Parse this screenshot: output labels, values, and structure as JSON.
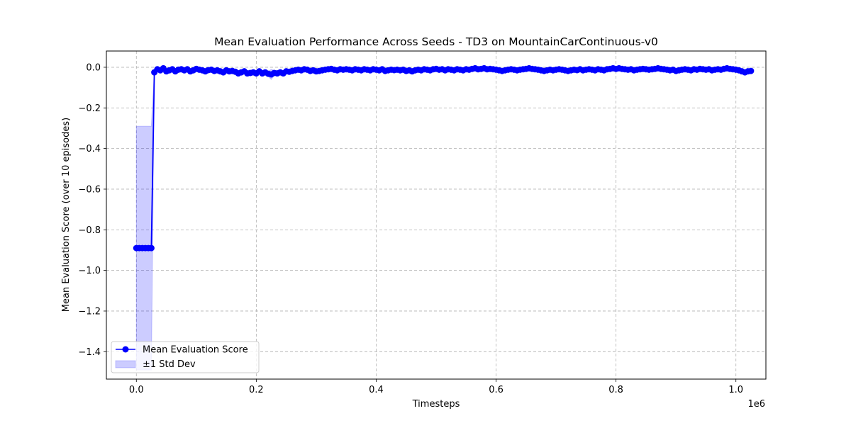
{
  "chart_data": {
    "type": "line",
    "title": "Mean Evaluation Performance Across Seeds - TD3 on MountainCarContinuous-v0",
    "xlabel": "Timesteps",
    "ylabel": "Mean Evaluation Score (over 10 episodes)",
    "x_offset_text": "1e6",
    "xlim": [
      -50000,
      1050000
    ],
    "ylim": [
      -1.535,
      0.08
    ],
    "x_ticks": [
      0,
      200000,
      400000,
      600000,
      800000,
      1000000
    ],
    "x_tick_labels": [
      "0.0",
      "0.2",
      "0.4",
      "0.6",
      "0.8",
      "1.0"
    ],
    "y_ticks": [
      0,
      -0.2,
      -0.4,
      -0.6,
      -0.8,
      -1.0,
      -1.2,
      -1.4
    ],
    "y_tick_labels": [
      "0.0",
      "−0.2",
      "−0.4",
      "−0.6",
      "−0.8",
      "−1.0",
      "−1.2",
      "−1.4"
    ],
    "grid": true,
    "legend_position": "lower-left",
    "colors": {
      "line": "#0000ff",
      "band": "#0000ff",
      "grid": "#b0b0b0",
      "axes": "#000000"
    },
    "series": [
      {
        "name": "Mean Evaluation Score",
        "band_name": "±1 Std Dev",
        "x_start": 0,
        "x_step": 5000,
        "values": [
          -0.89,
          -0.89,
          -0.89,
          -0.89,
          -0.89,
          -0.89,
          -0.025,
          -0.01,
          -0.015,
          -0.005,
          -0.02,
          -0.015,
          -0.01,
          -0.02,
          -0.012,
          -0.01,
          -0.015,
          -0.01,
          -0.02,
          -0.015,
          -0.008,
          -0.012,
          -0.015,
          -0.02,
          -0.014,
          -0.012,
          -0.018,
          -0.015,
          -0.02,
          -0.025,
          -0.015,
          -0.02,
          -0.018,
          -0.022,
          -0.03,
          -0.025,
          -0.02,
          -0.03,
          -0.028,
          -0.025,
          -0.03,
          -0.02,
          -0.03,
          -0.025,
          -0.032,
          -0.035,
          -0.028,
          -0.03,
          -0.025,
          -0.03,
          -0.02,
          -0.022,
          -0.018,
          -0.015,
          -0.012,
          -0.015,
          -0.01,
          -0.012,
          -0.018,
          -0.015,
          -0.02,
          -0.018,
          -0.015,
          -0.012,
          -0.01,
          -0.008,
          -0.012,
          -0.015,
          -0.01,
          -0.012,
          -0.01,
          -0.012,
          -0.015,
          -0.01,
          -0.012,
          -0.015,
          -0.01,
          -0.012,
          -0.015,
          -0.01,
          -0.012,
          -0.015,
          -0.01,
          -0.018,
          -0.015,
          -0.012,
          -0.014,
          -0.012,
          -0.015,
          -0.012,
          -0.018,
          -0.015,
          -0.02,
          -0.015,
          -0.012,
          -0.015,
          -0.01,
          -0.012,
          -0.015,
          -0.01,
          -0.008,
          -0.012,
          -0.01,
          -0.015,
          -0.01,
          -0.012,
          -0.015,
          -0.01,
          -0.012,
          -0.015,
          -0.01,
          -0.012,
          -0.008,
          -0.005,
          -0.01,
          -0.008,
          -0.005,
          -0.01,
          -0.008,
          -0.01,
          -0.012,
          -0.015,
          -0.018,
          -0.015,
          -0.012,
          -0.01,
          -0.012,
          -0.015,
          -0.012,
          -0.01,
          -0.008,
          -0.005,
          -0.008,
          -0.01,
          -0.012,
          -0.015,
          -0.018,
          -0.015,
          -0.012,
          -0.015,
          -0.012,
          -0.01,
          -0.012,
          -0.015,
          -0.018,
          -0.015,
          -0.012,
          -0.014,
          -0.01,
          -0.015,
          -0.012,
          -0.01,
          -0.012,
          -0.015,
          -0.01,
          -0.012,
          -0.015,
          -0.01,
          -0.008,
          -0.005,
          -0.008,
          -0.005,
          -0.008,
          -0.01,
          -0.012,
          -0.01,
          -0.015,
          -0.012,
          -0.01,
          -0.008,
          -0.01,
          -0.012,
          -0.01,
          -0.008,
          -0.005,
          -0.008,
          -0.01,
          -0.012,
          -0.015,
          -0.012,
          -0.018,
          -0.015,
          -0.012,
          -0.01,
          -0.012,
          -0.015,
          -0.01,
          -0.012,
          -0.008,
          -0.01,
          -0.012,
          -0.01,
          -0.015,
          -0.012,
          -0.01,
          -0.012,
          -0.008,
          -0.005,
          -0.008,
          -0.01,
          -0.012,
          -0.015,
          -0.02,
          -0.025,
          -0.02,
          -0.018
        ],
        "band_low": [
          -1.49,
          -1.49,
          -1.49,
          -1.49,
          -1.49,
          -1.49,
          -0.04,
          -0.02,
          -0.025,
          -0.015,
          -0.03,
          -0.025,
          -0.02,
          -0.03,
          -0.022,
          -0.02,
          -0.025,
          -0.02,
          -0.03,
          -0.025,
          -0.018,
          -0.022,
          -0.025,
          -0.03,
          -0.024,
          -0.022,
          -0.028,
          -0.025,
          -0.03,
          -0.035,
          -0.025,
          -0.03,
          -0.028,
          -0.032,
          -0.04,
          -0.035,
          -0.03,
          -0.04,
          -0.038,
          -0.035,
          -0.04,
          -0.03,
          -0.045,
          -0.035,
          -0.045,
          -0.06,
          -0.04,
          -0.042,
          -0.035,
          -0.04,
          -0.03,
          -0.032,
          -0.028,
          -0.025,
          -0.022,
          -0.025,
          -0.02,
          -0.022,
          -0.028,
          -0.025,
          -0.03,
          -0.028,
          -0.025,
          -0.022,
          -0.02,
          -0.018,
          -0.022,
          -0.025,
          -0.02,
          -0.022,
          -0.02,
          -0.022,
          -0.025,
          -0.02,
          -0.022,
          -0.025,
          -0.02,
          -0.022,
          -0.025,
          -0.02,
          -0.022,
          -0.025,
          -0.02,
          -0.028,
          -0.025,
          -0.022,
          -0.024,
          -0.022,
          -0.025,
          -0.022,
          -0.028,
          -0.025,
          -0.03,
          -0.025,
          -0.022,
          -0.025,
          -0.02,
          -0.022,
          -0.025,
          -0.02,
          -0.018,
          -0.022,
          -0.02,
          -0.025,
          -0.02,
          -0.022,
          -0.025,
          -0.02,
          -0.022,
          -0.025,
          -0.02,
          -0.022,
          -0.018,
          -0.015,
          -0.02,
          -0.018,
          -0.015,
          -0.02,
          -0.018,
          -0.02,
          -0.022,
          -0.025,
          -0.028,
          -0.025,
          -0.022,
          -0.02,
          -0.022,
          -0.025,
          -0.022,
          -0.02,
          -0.018,
          -0.015,
          -0.018,
          -0.02,
          -0.022,
          -0.025,
          -0.028,
          -0.025,
          -0.022,
          -0.025,
          -0.022,
          -0.02,
          -0.022,
          -0.025,
          -0.028,
          -0.025,
          -0.022,
          -0.024,
          -0.02,
          -0.025,
          -0.022,
          -0.02,
          -0.022,
          -0.025,
          -0.02,
          -0.022,
          -0.025,
          -0.02,
          -0.018,
          -0.015,
          -0.018,
          -0.015,
          -0.018,
          -0.02,
          -0.022,
          -0.02,
          -0.025,
          -0.022,
          -0.02,
          -0.018,
          -0.02,
          -0.022,
          -0.02,
          -0.018,
          -0.015,
          -0.018,
          -0.02,
          -0.022,
          -0.025,
          -0.022,
          -0.028,
          -0.025,
          -0.022,
          -0.02,
          -0.022,
          -0.025,
          -0.02,
          -0.022,
          -0.018,
          -0.02,
          -0.022,
          -0.02,
          -0.025,
          -0.022,
          -0.02,
          -0.022,
          -0.018,
          -0.015,
          -0.018,
          -0.02,
          -0.022,
          -0.025,
          -0.03,
          -0.035,
          -0.03,
          -0.028
        ],
        "band_high": [
          -0.29,
          -0.29,
          -0.29,
          -0.29,
          -0.29,
          -0.29,
          -0.01,
          0.0,
          -0.005,
          0.005,
          -0.01,
          -0.005,
          0.0,
          -0.01,
          -0.002,
          0.0,
          -0.005,
          0.0,
          -0.01,
          -0.005,
          0.002,
          -0.002,
          -0.005,
          -0.01,
          -0.004,
          -0.002,
          -0.008,
          -0.005,
          -0.01,
          -0.015,
          -0.005,
          -0.01,
          -0.008,
          -0.012,
          -0.02,
          -0.015,
          -0.01,
          -0.02,
          -0.018,
          -0.015,
          -0.02,
          -0.01,
          -0.015,
          -0.015,
          -0.02,
          -0.01,
          -0.016,
          -0.018,
          -0.015,
          -0.02,
          -0.01,
          -0.012,
          -0.008,
          -0.005,
          -0.002,
          -0.005,
          0.0,
          -0.002,
          -0.008,
          -0.005,
          -0.01,
          -0.008,
          -0.005,
          -0.002,
          0.0,
          0.002,
          -0.002,
          -0.005,
          0.0,
          -0.002,
          0.0,
          -0.002,
          -0.005,
          0.0,
          -0.002,
          -0.005,
          0.0,
          -0.002,
          -0.005,
          0.0,
          -0.002,
          -0.005,
          0.0,
          -0.008,
          -0.005,
          -0.002,
          -0.004,
          -0.002,
          -0.005,
          -0.002,
          -0.008,
          -0.005,
          -0.01,
          -0.005,
          -0.002,
          -0.005,
          0.0,
          -0.002,
          -0.005,
          0.0,
          0.002,
          -0.002,
          0.0,
          -0.005,
          0.0,
          -0.002,
          -0.005,
          0.0,
          -0.002,
          -0.005,
          0.0,
          -0.002,
          0.002,
          0.005,
          0.0,
          0.002,
          0.005,
          0.0,
          0.002,
          0.0,
          -0.002,
          -0.005,
          -0.008,
          -0.005,
          -0.002,
          0.0,
          -0.002,
          -0.005,
          -0.002,
          0.0,
          0.002,
          0.005,
          0.002,
          0.0,
          -0.002,
          -0.005,
          -0.008,
          -0.005,
          -0.002,
          -0.005,
          -0.002,
          0.0,
          -0.002,
          -0.005,
          -0.008,
          -0.005,
          -0.002,
          -0.004,
          0.0,
          -0.005,
          -0.002,
          0.0,
          -0.002,
          -0.005,
          0.0,
          -0.002,
          -0.005,
          0.0,
          0.002,
          0.005,
          0.002,
          0.005,
          0.002,
          0.0,
          -0.002,
          0.0,
          -0.005,
          -0.002,
          0.0,
          0.002,
          0.0,
          -0.002,
          0.0,
          0.002,
          0.005,
          0.002,
          0.0,
          -0.002,
          -0.005,
          -0.002,
          -0.008,
          -0.005,
          -0.002,
          0.0,
          -0.002,
          -0.005,
          0.0,
          -0.002,
          0.002,
          0.0,
          -0.002,
          0.0,
          -0.005,
          -0.002,
          0.0,
          -0.002,
          0.002,
          0.005,
          0.002,
          0.0,
          -0.002,
          -0.005,
          -0.01,
          -0.015,
          -0.01,
          -0.008
        ]
      }
    ]
  }
}
